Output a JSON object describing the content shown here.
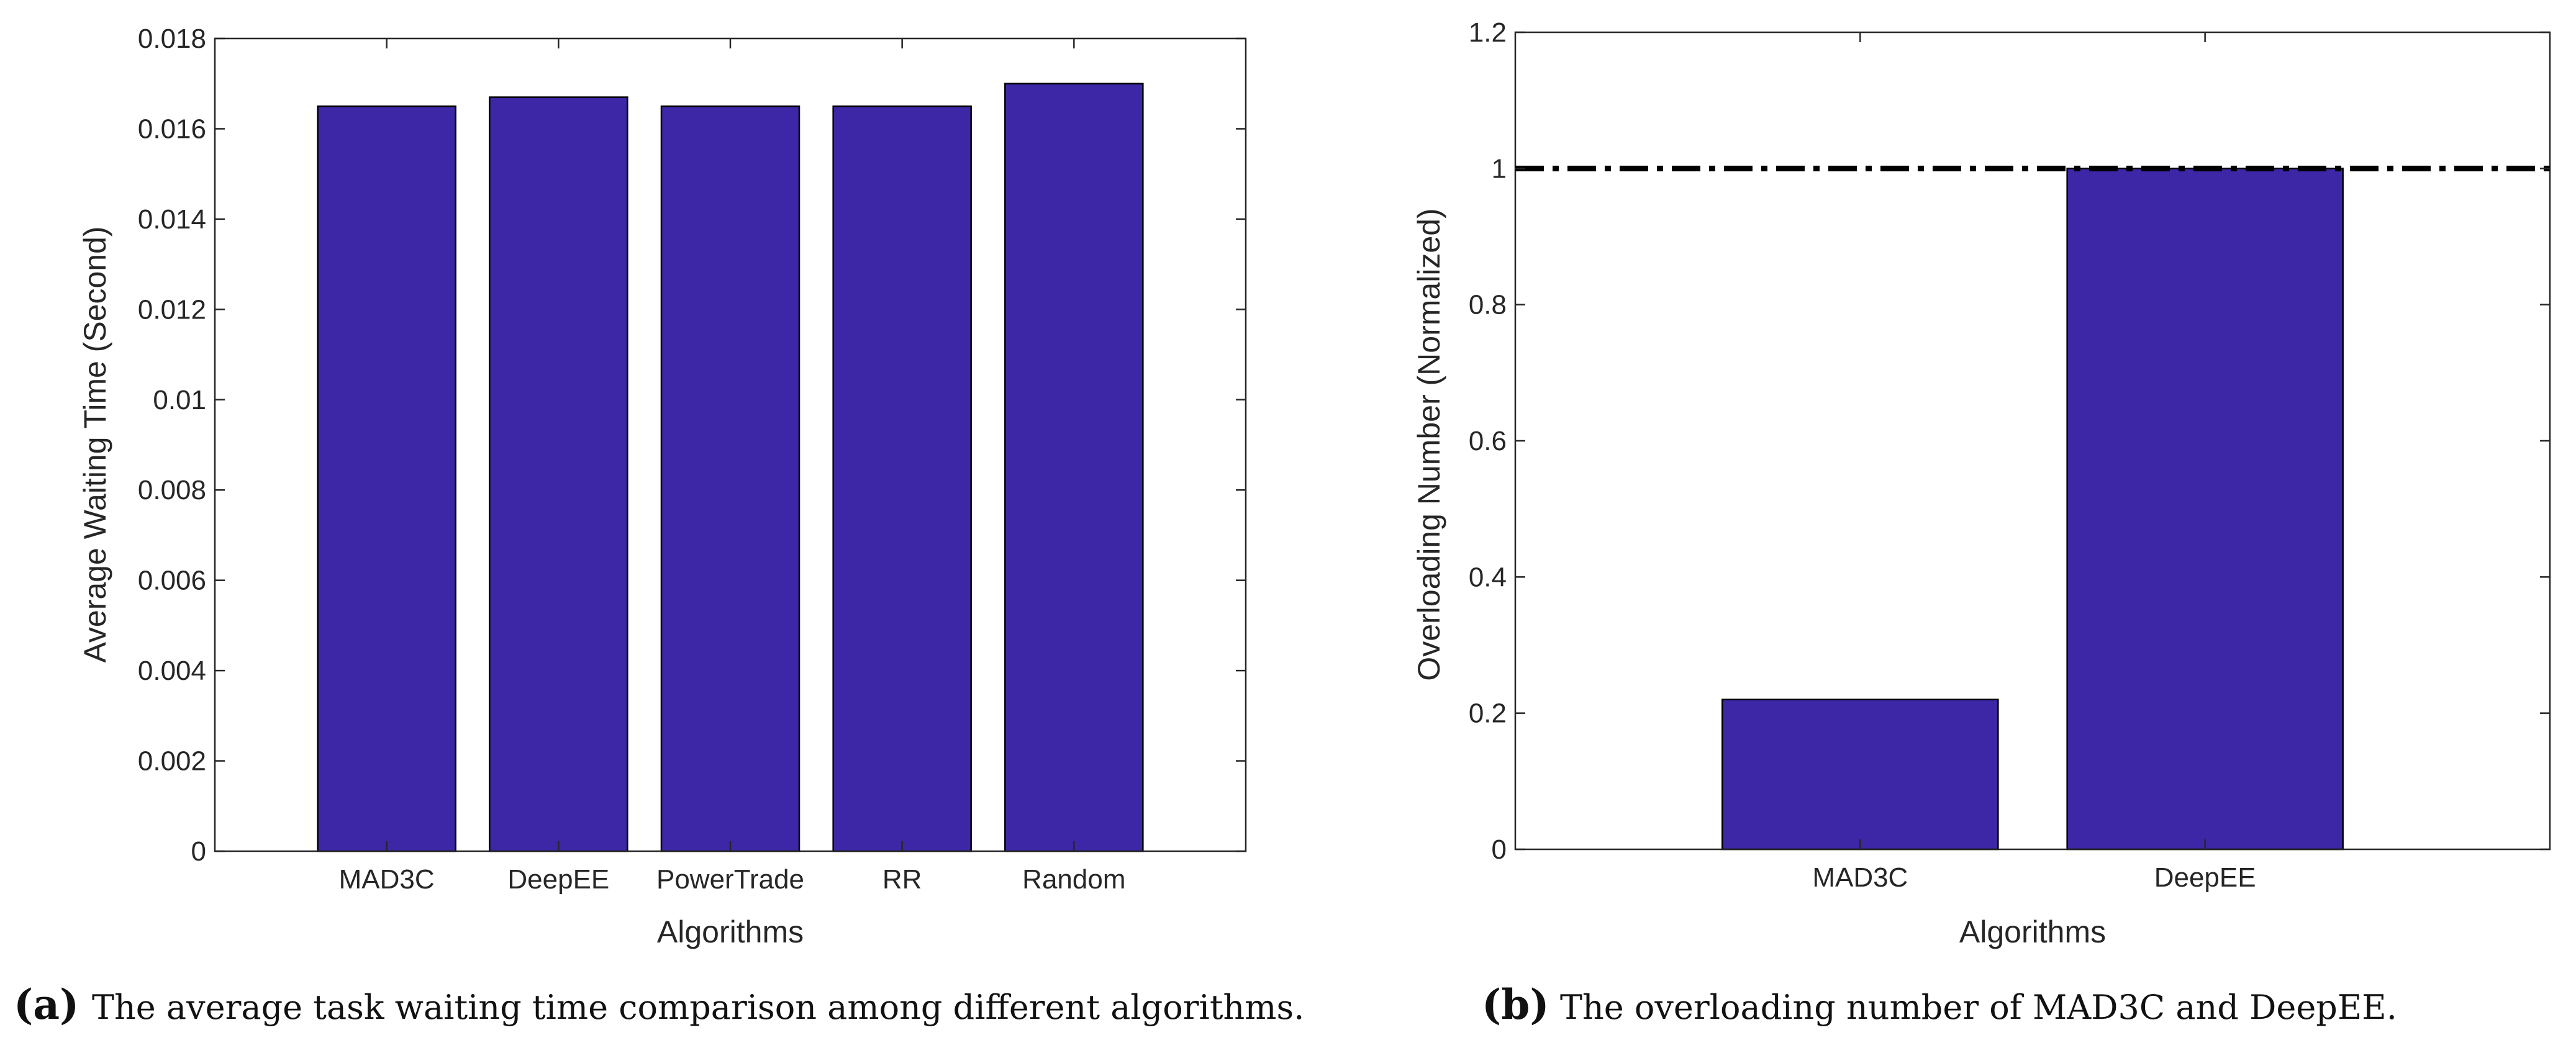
{
  "chart_data": [
    {
      "type": "bar",
      "title": "",
      "categories": [
        "MAD3C",
        "DeepEE",
        "PowerTrade",
        "RR",
        "Random"
      ],
      "values": [
        0.0165,
        0.0167,
        0.0165,
        0.0165,
        0.017
      ],
      "xlabel": "Algorithms",
      "ylabel": "Average Waiting Time (Second)",
      "ylim": [
        0,
        0.018
      ],
      "yticks": [
        0,
        0.002,
        0.004,
        0.006,
        0.008,
        0.01,
        0.012,
        0.014,
        0.016,
        0.018
      ],
      "ytick_labels": [
        "0",
        "0.002",
        "0.004",
        "0.006",
        "0.008",
        "0.01",
        "0.012",
        "0.014",
        "0.016",
        "0.018"
      ],
      "bar_color": "#3d27a6",
      "grid": false
    },
    {
      "type": "bar",
      "title": "",
      "categories": [
        "MAD3C",
        "DeepEE"
      ],
      "values": [
        0.22,
        1.0
      ],
      "xlabel": "Algorithms",
      "ylabel": "Overloading Number (Normalized)",
      "ylim": [
        0,
        1.2
      ],
      "yticks": [
        0,
        0.2,
        0.4,
        0.6,
        0.8,
        1,
        1.2
      ],
      "ytick_labels": [
        "0",
        "0.2",
        "0.4",
        "0.6",
        "0.8",
        "1",
        "1.2"
      ],
      "reference_line": 1.0,
      "bar_color": "#3d27a6",
      "grid": false
    }
  ],
  "captions": [
    {
      "label": "(a)",
      "text": "The average task waiting time comparison among different algorithms."
    },
    {
      "label": "(b)",
      "text": "The overloading number of MAD3C and DeepEE."
    }
  ]
}
